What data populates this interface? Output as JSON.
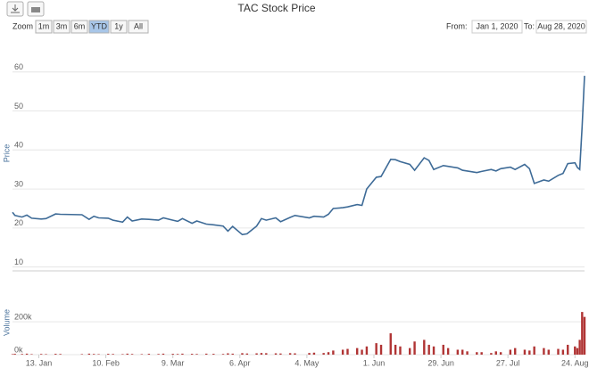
{
  "chart_data": {
    "type": "line",
    "title": "TAC Stock Price",
    "zoom_label": "Zoom",
    "zoom_buttons": [
      "1m",
      "3m",
      "6m",
      "YTD",
      "1y",
      "All"
    ],
    "selected_zoom": "YTD",
    "from_label": "From:",
    "from": "Jan 1, 2020",
    "to_label": "To:",
    "to": "Aug 28, 2020",
    "ylabel": "Price",
    "y2label": "Volume",
    "x": [
      "2020-01-02",
      "2020-01-03",
      "2020-01-06",
      "2020-01-08",
      "2020-01-10",
      "2020-01-14",
      "2020-01-16",
      "2020-01-20",
      "2020-01-22",
      "2020-01-31",
      "2020-02-03",
      "2020-02-05",
      "2020-02-07",
      "2020-02-11",
      "2020-02-13",
      "2020-02-17",
      "2020-02-19",
      "2020-02-21",
      "2020-02-25",
      "2020-02-28",
      "2020-03-03",
      "2020-03-05",
      "2020-03-09",
      "2020-03-11",
      "2020-03-13",
      "2020-03-17",
      "2020-03-19",
      "2020-03-23",
      "2020-03-26",
      "2020-03-30",
      "2020-04-01",
      "2020-04-03",
      "2020-04-07",
      "2020-04-09",
      "2020-04-13",
      "2020-04-15",
      "2020-04-17",
      "2020-04-21",
      "2020-04-23",
      "2020-04-27",
      "2020-04-29",
      "2020-05-05",
      "2020-05-07",
      "2020-05-11",
      "2020-05-13",
      "2020-05-15",
      "2020-05-19",
      "2020-05-21",
      "2020-05-25",
      "2020-05-27",
      "2020-05-29",
      "2020-06-02",
      "2020-06-04",
      "2020-06-08",
      "2020-06-10",
      "2020-06-12",
      "2020-06-16",
      "2020-06-18",
      "2020-06-22",
      "2020-06-24",
      "2020-06-26",
      "2020-06-30",
      "2020-07-02",
      "2020-07-06",
      "2020-07-08",
      "2020-07-10",
      "2020-07-14",
      "2020-07-16",
      "2020-07-20",
      "2020-07-22",
      "2020-07-24",
      "2020-07-28",
      "2020-07-30",
      "2020-08-03",
      "2020-08-05",
      "2020-08-07",
      "2020-08-11",
      "2020-08-13",
      "2020-08-17",
      "2020-08-19",
      "2020-08-21",
      "2020-08-24",
      "2020-08-25",
      "2020-08-26",
      "2020-08-27",
      "2020-08-28"
    ],
    "series": [
      {
        "name": "Price",
        "color": "#3e6b97",
        "values": [
          24,
          23.2,
          22.8,
          23.3,
          22.5,
          22.3,
          22.4,
          23.6,
          23.5,
          23.4,
          22.2,
          23.0,
          22.6,
          22.5,
          22.0,
          21.5,
          22.8,
          21.8,
          22.3,
          22.2,
          22.0,
          22.6,
          22.0,
          21.7,
          22.4,
          21.2,
          21.8,
          21.0,
          20.8,
          20.5,
          19.2,
          20.4,
          18.3,
          18.5,
          20.5,
          22.4,
          22.0,
          22.6,
          21.6,
          22.7,
          23.2,
          22.6,
          23.0,
          22.8,
          23.5,
          25.0,
          25.2,
          25.4,
          26.0,
          25.8,
          30.0,
          33.0,
          33.2,
          37.6,
          37.5,
          37.0,
          36.3,
          34.8,
          38.0,
          37.3,
          35.0,
          36.0,
          35.8,
          35.4,
          34.8,
          34.6,
          34.2,
          34.5,
          35.0,
          34.6,
          35.2,
          35.6,
          35.0,
          36.3,
          35.2,
          31.4,
          32.3,
          32.0,
          33.5,
          34.0,
          36.5,
          36.7,
          35.5,
          35.0,
          46.0,
          59.0
        ]
      },
      {
        "name": "Volume",
        "color": "#b03434",
        "axis": "y2",
        "values": [
          3000,
          5000,
          4000,
          6000,
          3000,
          4000,
          3000,
          5000,
          4000,
          3000,
          6000,
          4000,
          3000,
          5000,
          4000,
          3000,
          6000,
          4000,
          3000,
          5000,
          4000,
          6000,
          5000,
          4000,
          6000,
          5000,
          4000,
          6000,
          5000,
          4000,
          8000,
          6000,
          9000,
          7000,
          8000,
          10000,
          9000,
          8000,
          7000,
          9000,
          8000,
          10000,
          12000,
          10000,
          15000,
          25000,
          30000,
          35000,
          40000,
          30000,
          50000,
          70000,
          60000,
          130000,
          60000,
          50000,
          40000,
          80000,
          90000,
          60000,
          50000,
          60000,
          40000,
          30000,
          30000,
          20000,
          15000,
          15000,
          10000,
          20000,
          15000,
          30000,
          40000,
          30000,
          25000,
          50000,
          40000,
          30000,
          35000,
          30000,
          60000,
          50000,
          40000,
          90000,
          260000,
          230000
        ]
      }
    ],
    "xlim": [
      "2020-01-02",
      "2020-08-28"
    ],
    "xticks": [
      {
        "value": "2020-01-13",
        "label": "13. Jan"
      },
      {
        "value": "2020-02-10",
        "label": "10. Feb"
      },
      {
        "value": "2020-03-09",
        "label": "9. Mar"
      },
      {
        "value": "2020-04-06",
        "label": "6. Apr"
      },
      {
        "value": "2020-05-04",
        "label": "4. May"
      },
      {
        "value": "2020-06-01",
        "label": "1. Jun"
      },
      {
        "value": "2020-06-29",
        "label": "29. Jun"
      },
      {
        "value": "2020-07-27",
        "label": "27. Jul"
      },
      {
        "value": "2020-08-24",
        "label": "24. Aug"
      }
    ],
    "ylim": [
      9,
      62
    ],
    "yticks": [
      10,
      20,
      30,
      40,
      50,
      60
    ],
    "y2lim": [
      0,
      380000
    ],
    "y2ticks": [
      {
        "value": 0,
        "label": "0k"
      },
      {
        "value": 200000,
        "label": "200k"
      }
    ],
    "grid": true
  }
}
